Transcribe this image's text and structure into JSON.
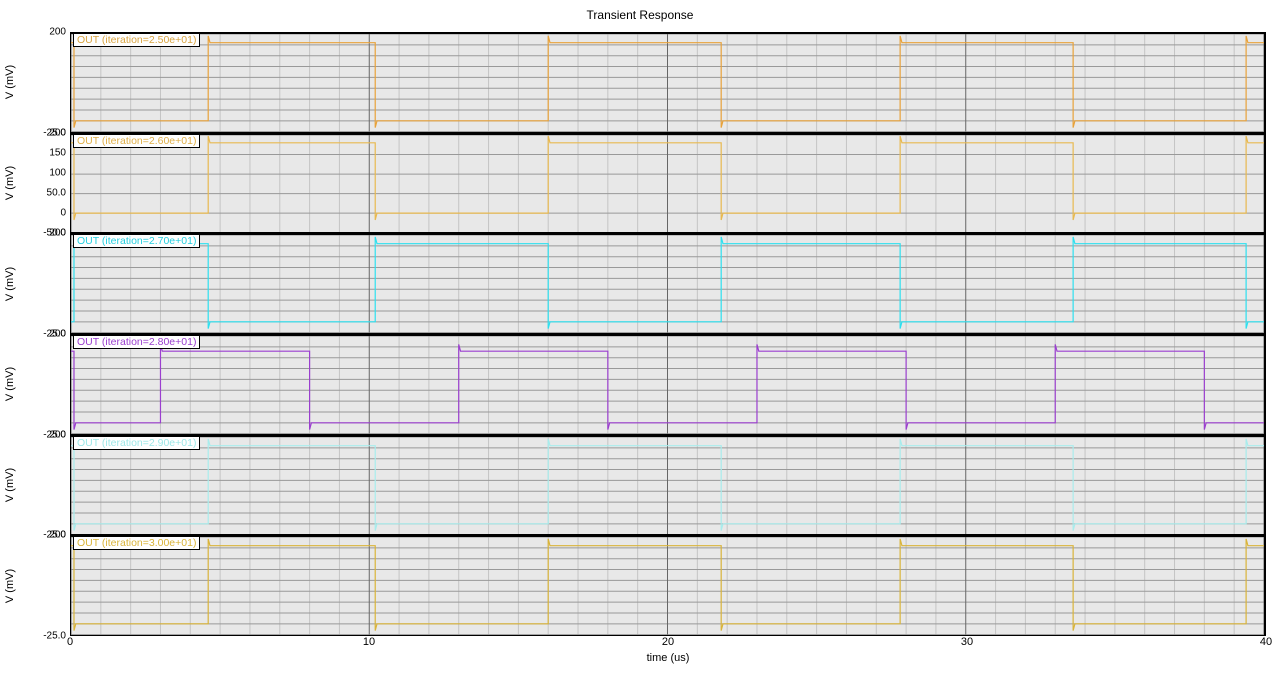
{
  "title": "Transient Response",
  "xaxis": {
    "label": "time (us)",
    "min": 0,
    "max": 40,
    "ticks": [
      0,
      10,
      20,
      30,
      40
    ],
    "major_grid": [
      0,
      10,
      20,
      30,
      40
    ],
    "minor_grid_step": 1,
    "grid_color_major": "#666666",
    "grid_color_minor": "#c4c4c4",
    "tick_fontsize": 11
  },
  "panel_style": {
    "background": "#e8e8e8",
    "border_color": "#000000",
    "hgrid_color": "#999999",
    "legend_bg": "#ffffff",
    "legend_border": "#000000",
    "tick_fontsize": 10,
    "ylabel_fontsize": 11
  },
  "panels": [
    {
      "legend": "OUT (iteration=2.50e+01)",
      "legend_color": "#d9a441",
      "ylabel": "V (mV)",
      "ymin": -25.0,
      "ymax": 200.0,
      "yticks": [
        {
          "v": -25.0,
          "label": "-25.0"
        },
        {
          "v": 200.0,
          "label": "200"
        }
      ],
      "hgrid_step": 25,
      "trace_color": "#e8a23a",
      "trace_width": 1.2,
      "waveform": {
        "low": 0,
        "high": 180,
        "start_high": true,
        "edges": [
          0.1,
          4.6,
          10.2,
          16.0,
          21.8,
          27.8,
          33.6,
          39.4
        ]
      }
    },
    {
      "legend": "OUT (iteration=2.60e+01)",
      "legend_color": "#e0b04a",
      "ylabel": "V (mV)",
      "ymin": -50.0,
      "ymax": 200.0,
      "yticks": [
        {
          "v": -50.0,
          "label": "-50.0"
        },
        {
          "v": 0.0,
          "label": "0"
        },
        {
          "v": 50.0,
          "label": "50.0"
        },
        {
          "v": 100.0,
          "label": "100"
        },
        {
          "v": 150.0,
          "label": "150"
        },
        {
          "v": 200.0,
          "label": "200"
        }
      ],
      "hgrid_step": 50,
      "trace_color": "#e8b950",
      "trace_width": 1.2,
      "waveform": {
        "low": 0,
        "high": 180,
        "start_high": true,
        "edges": [
          0.1,
          4.6,
          10.2,
          16.0,
          21.8,
          27.8,
          33.6,
          39.4
        ]
      }
    },
    {
      "legend": "OUT (iteration=2.70e+01)",
      "legend_color": "#26d0e0",
      "ylabel": "V (mV)",
      "ymin": -25.0,
      "ymax": 200.0,
      "yticks": [
        {
          "v": -25.0,
          "label": "-25.0"
        },
        {
          "v": 200.0,
          "label": "200"
        }
      ],
      "hgrid_step": 25,
      "trace_color": "#2de0ef",
      "trace_width": 1.2,
      "waveform": {
        "low": 0,
        "high": 180,
        "start_high": false,
        "edges": [
          0.1,
          4.6,
          10.2,
          16.0,
          21.8,
          27.8,
          33.6,
          39.4
        ]
      }
    },
    {
      "legend": "OUT (iteration=2.80e+01)",
      "legend_color": "#9b3fcf",
      "ylabel": "V (mV)",
      "ymin": -25.0,
      "ymax": 200.0,
      "yticks": [
        {
          "v": -25.0,
          "label": "-25.0"
        },
        {
          "v": 200.0,
          "label": "200"
        }
      ],
      "hgrid_step": 25,
      "trace_color": "#9b3fcf",
      "trace_width": 1.2,
      "waveform": {
        "low": 0,
        "high": 165,
        "start_high": true,
        "edges": [
          0.1,
          3.0,
          8.0,
          13.0,
          18.0,
          23.0,
          28.0,
          33.0,
          38.0
        ]
      }
    },
    {
      "legend": "OUT (iteration=2.90e+01)",
      "legend_color": "#9ee8e8",
      "ylabel": "V (mV)",
      "ymin": -25.0,
      "ymax": 200.0,
      "yticks": [
        {
          "v": -25.0,
          "label": "-25.0"
        },
        {
          "v": 200.0,
          "label": "200"
        }
      ],
      "hgrid_step": 25,
      "trace_color": "#a8ecec",
      "trace_width": 1.2,
      "waveform": {
        "low": 0,
        "high": 180,
        "start_high": true,
        "edges": [
          0.1,
          4.6,
          10.2,
          16.0,
          21.8,
          27.8,
          33.6,
          39.4
        ]
      }
    },
    {
      "legend": "OUT (iteration=3.00e+01)",
      "legend_color": "#d9b43a",
      "ylabel": "V (mV)",
      "ymin": -25.0,
      "ymax": 200.0,
      "yticks": [
        {
          "v": -25.0,
          "label": "-25.0"
        },
        {
          "v": 200.0,
          "label": "200"
        }
      ],
      "hgrid_step": 25,
      "trace_color": "#d9b43a",
      "trace_width": 1.2,
      "waveform": {
        "low": 0,
        "high": 180,
        "start_high": true,
        "edges": [
          0.1,
          4.6,
          10.2,
          16.0,
          21.8,
          27.8,
          33.6,
          39.4
        ]
      }
    }
  ]
}
